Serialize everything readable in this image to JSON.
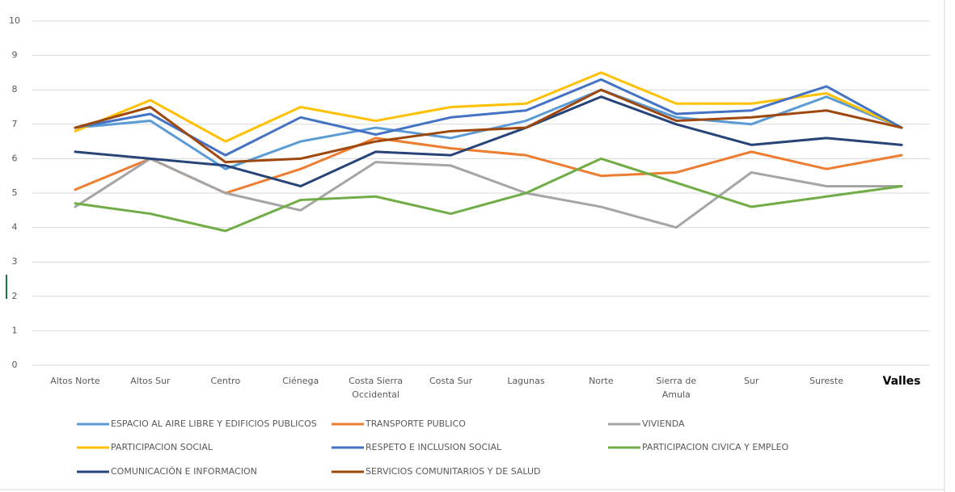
{
  "chart_data": {
    "type": "line",
    "categories": [
      "Altos Norte",
      "Altos Sur",
      "Centro",
      "Ciénega",
      "Costa Sierra Occidental",
      "Costa Sur",
      "Lagunas",
      "Norte",
      "Sierra de Amula",
      "Sur",
      "Sureste",
      "Valles"
    ],
    "series": [
      {
        "name": "ESPACIO AL AIRE LIBRE Y EDIFICIOS PUBLICOS",
        "color": "#5b9bd5",
        "values": [
          6.9,
          7.1,
          5.7,
          6.5,
          6.9,
          6.6,
          7.1,
          8.0,
          7.2,
          7.0,
          7.8,
          6.9
        ]
      },
      {
        "name": "TRANSPORTE PUBLICO",
        "color": "#ed7d31",
        "values": [
          5.1,
          6.0,
          5.0,
          5.7,
          6.6,
          6.3,
          6.1,
          5.5,
          5.6,
          6.2,
          5.7,
          6.1
        ]
      },
      {
        "name": "VIVIENDA",
        "color": "#a5a5a5",
        "values": [
          4.6,
          6.0,
          5.0,
          4.5,
          5.9,
          5.8,
          5.0,
          4.6,
          4.0,
          5.6,
          5.2,
          5.2
        ]
      },
      {
        "name": "PARTICIPACION SOCIAL",
        "color": "#ffc000",
        "values": [
          6.8,
          7.7,
          6.5,
          7.5,
          7.1,
          7.5,
          7.6,
          8.5,
          7.6,
          7.6,
          7.9,
          6.9
        ]
      },
      {
        "name": "RESPETO E INCLUSION SOCIAL",
        "color": "#4472c4",
        "values": [
          6.9,
          7.3,
          6.1,
          7.2,
          6.7,
          7.2,
          7.4,
          8.3,
          7.3,
          7.4,
          8.1,
          6.9
        ]
      },
      {
        "name": "PARTICIPACION CIVICA Y EMPLEO",
        "color": "#70ad47",
        "values": [
          4.7,
          4.4,
          3.9,
          4.8,
          4.9,
          4.4,
          5.0,
          6.0,
          5.3,
          4.6,
          4.9,
          5.2
        ]
      },
      {
        "name": "COMUNICACIÓN E INFORMACION",
        "color": "#264478",
        "values": [
          6.2,
          6.0,
          5.8,
          5.2,
          6.2,
          6.1,
          6.9,
          7.8,
          7.0,
          6.4,
          6.6,
          6.4
        ]
      },
      {
        "name": "SERVICIOS COMUNITARIOS Y DE SALUD",
        "color": "#9e480e",
        "values": [
          6.9,
          7.5,
          5.9,
          6.0,
          6.5,
          6.8,
          6.9,
          8.0,
          7.1,
          7.2,
          7.4,
          6.9
        ]
      }
    ],
    "ylim": [
      0,
      10
    ],
    "yticks": [
      0,
      1,
      2,
      3,
      4,
      5,
      6,
      7,
      8,
      9,
      10
    ],
    "grid": true,
    "legend": "bottom"
  }
}
